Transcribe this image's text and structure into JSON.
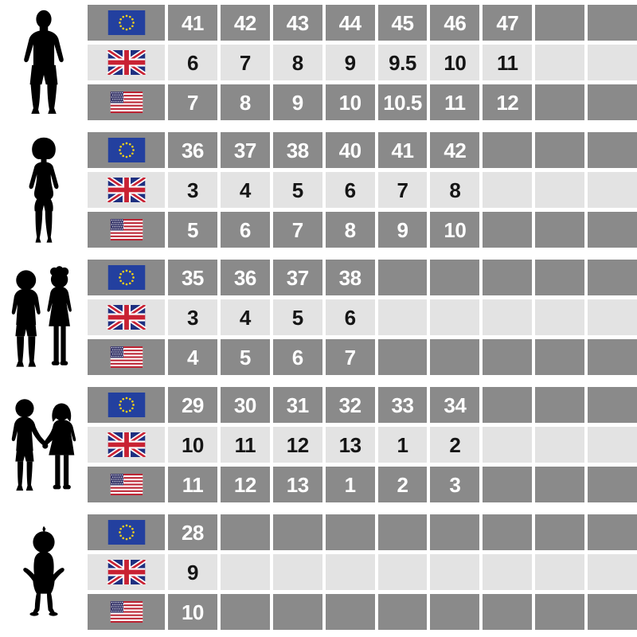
{
  "title_semantic": "shoe-size-conversion-chart",
  "colors": {
    "cell_dark": "#8a8a8a",
    "cell_light": "#e3e3e3",
    "text_on_dark": "#ffffff",
    "text_on_light": "#151515",
    "silhouette": "#000000",
    "eu_blue": "#23409f",
    "eu_star": "#f5d118",
    "uk_blue": "#1e2f80",
    "uk_red": "#c92233",
    "us_red": "#bb2433",
    "us_blue": "#3c3b6e",
    "page_bg": "#ffffff"
  },
  "chart_data": {
    "type": "table",
    "description": "Shoe size conversion chart: five age/gender groups (shown as black silhouettes), each with EU, UK and US size rows identified by flag icons. Grid has 9 value columns; unused cells are blank.",
    "columns": 9,
    "groups": [
      {
        "id": "men",
        "figure_icon": "man-silhouette",
        "rows": [
          {
            "region_id": "eu",
            "flag_icon": "eu-flag-icon",
            "shade": "dark",
            "values": [
              "41",
              "42",
              "43",
              "44",
              "45",
              "46",
              "47",
              "",
              ""
            ]
          },
          {
            "region_id": "uk",
            "flag_icon": "uk-flag-icon",
            "shade": "light",
            "values": [
              "6",
              "7",
              "8",
              "9",
              "9.5",
              "10",
              "11",
              "",
              ""
            ]
          },
          {
            "region_id": "us",
            "flag_icon": "us-flag-icon",
            "shade": "dark",
            "values": [
              "7",
              "8",
              "9",
              "10",
              "10.5",
              "11",
              "12",
              "",
              ""
            ]
          }
        ]
      },
      {
        "id": "women",
        "figure_icon": "woman-silhouette",
        "rows": [
          {
            "region_id": "eu",
            "flag_icon": "eu-flag-icon",
            "shade": "dark",
            "values": [
              "36",
              "37",
              "38",
              "40",
              "41",
              "42",
              "",
              "",
              ""
            ]
          },
          {
            "region_id": "uk",
            "flag_icon": "uk-flag-icon",
            "shade": "light",
            "values": [
              "3",
              "4",
              "5",
              "6",
              "7",
              "8",
              "",
              "",
              ""
            ]
          },
          {
            "region_id": "us",
            "flag_icon": "us-flag-icon",
            "shade": "dark",
            "values": [
              "5",
              "6",
              "7",
              "8",
              "9",
              "10",
              "",
              "",
              ""
            ]
          }
        ]
      },
      {
        "id": "children",
        "figure_icon": "two-children-silhouette",
        "rows": [
          {
            "region_id": "eu",
            "flag_icon": "eu-flag-icon",
            "shade": "dark",
            "values": [
              "35",
              "36",
              "37",
              "38",
              "",
              "",
              "",
              "",
              ""
            ]
          },
          {
            "region_id": "uk",
            "flag_icon": "uk-flag-icon",
            "shade": "light",
            "values": [
              "3",
              "4",
              "5",
              "6",
              "",
              "",
              "",
              "",
              ""
            ]
          },
          {
            "region_id": "us",
            "flag_icon": "us-flag-icon",
            "shade": "dark",
            "values": [
              "4",
              "5",
              "6",
              "7",
              "",
              "",
              "",
              "",
              ""
            ]
          }
        ]
      },
      {
        "id": "young-children",
        "figure_icon": "two-small-children-holding-hands-silhouette",
        "rows": [
          {
            "region_id": "eu",
            "flag_icon": "eu-flag-icon",
            "shade": "dark",
            "values": [
              "29",
              "30",
              "31",
              "32",
              "33",
              "34",
              "",
              "",
              ""
            ]
          },
          {
            "region_id": "uk",
            "flag_icon": "uk-flag-icon",
            "shade": "light",
            "values": [
              "10",
              "11",
              "12",
              "13",
              "1",
              "2",
              "",
              "",
              ""
            ]
          },
          {
            "region_id": "us",
            "flag_icon": "us-flag-icon",
            "shade": "dark",
            "values": [
              "11",
              "12",
              "13",
              "1",
              "2",
              "3",
              "",
              "",
              ""
            ]
          }
        ]
      },
      {
        "id": "toddlers",
        "figure_icon": "toddler-silhouette",
        "rows": [
          {
            "region_id": "eu",
            "flag_icon": "eu-flag-icon",
            "shade": "dark",
            "values": [
              "28",
              "",
              "",
              "",
              "",
              "",
              "",
              "",
              ""
            ]
          },
          {
            "region_id": "uk",
            "flag_icon": "uk-flag-icon",
            "shade": "light",
            "values": [
              "9",
              "",
              "",
              "",
              "",
              "",
              "",
              "",
              ""
            ]
          },
          {
            "region_id": "us",
            "flag_icon": "us-flag-icon",
            "shade": "dark",
            "values": [
              "10",
              "",
              "",
              "",
              "",
              "",
              "",
              "",
              ""
            ]
          }
        ]
      }
    ]
  }
}
